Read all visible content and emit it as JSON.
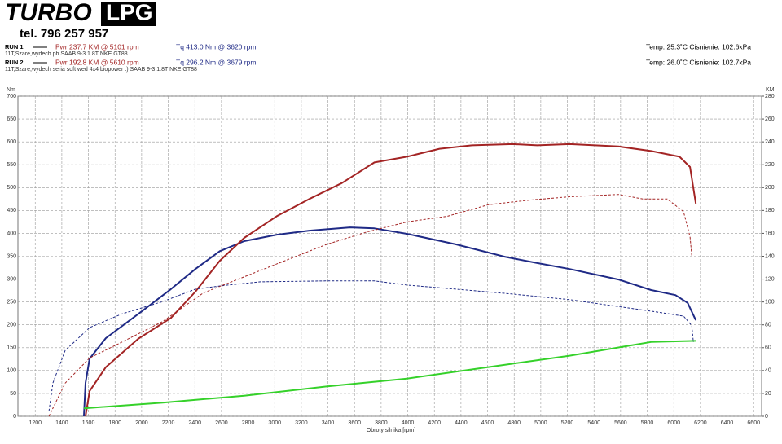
{
  "header": {
    "logo_left": "TURBO",
    "logo_right": "LPG",
    "phone": "tel. 796 257 957",
    "runs": [
      {
        "label": "RUN 1",
        "power": "Pwr 237.7 KM @ 5101 rpm",
        "torque": "Tq 413.0 Nm @ 3620 rpm",
        "conditions": "Temp: 25.3˚C   Cisnienie: 102.6kPa",
        "description": "11T,Szare,wydech pb SAAB 9-3 1.8T NKE GT88"
      },
      {
        "label": "RUN 2",
        "power": "Pwr 192.8 KM @ 5610 rpm",
        "torque": "Tq 296.2 Nm @ 3679 rpm",
        "conditions": "Temp: 26.0˚C   Cisnienie: 102.7kPa",
        "description": "11T,Szare,wydech seria soft wed 4x4 biopower :) SAAB 9-3 1.8T NKE GT88"
      }
    ]
  },
  "chart_data": {
    "type": "line",
    "ylabel": "Nm",
    "y2label": "KM",
    "xlabel": "Obroty silnika [rpm]",
    "grid": true,
    "xlim": [
      1070,
      6660
    ],
    "xticks": [
      1200,
      1400,
      1600,
      1800,
      2000,
      2200,
      2400,
      2600,
      2800,
      3000,
      3200,
      3400,
      3600,
      3800,
      4000,
      4200,
      4400,
      4600,
      4800,
      5000,
      5200,
      5400,
      5600,
      5800,
      6000,
      6200,
      6400,
      6600
    ],
    "ylim": [
      0,
      700
    ],
    "yticks": [
      0,
      50,
      100,
      150,
      200,
      250,
      300,
      350,
      400,
      450,
      500,
      550,
      600,
      650,
      700
    ],
    "y2lim": [
      0,
      280
    ],
    "y2ticks": [
      0,
      20,
      40,
      60,
      80,
      100,
      120,
      140,
      160,
      180,
      200,
      220,
      240,
      260,
      280
    ],
    "series": [
      {
        "color": "#1f2a86",
        "dashed": false,
        "x": [
          1566,
          1578,
          1609,
          1731,
          1976,
          2220,
          2404,
          2587,
          2771,
          3015,
          3260,
          3566,
          3749,
          3994,
          4361,
          4728,
          4973,
          5217,
          5584,
          5829,
          6012,
          6104,
          6165
        ],
        "values": [
          0,
          73,
          126,
          171,
          224,
          278,
          322,
          361,
          383,
          397,
          406,
          413,
          411,
          399,
          376,
          349,
          335,
          322,
          299,
          276,
          265,
          248,
          210
        ]
      },
      {
        "color": "#a32424",
        "dashed": false,
        "axis": "y2",
        "x": [
          1578,
          1609,
          1731,
          1976,
          2220,
          2404,
          2587,
          2771,
          3015,
          3260,
          3505,
          3749,
          3994,
          4239,
          4483,
          4789,
          4973,
          5217,
          5584,
          5829,
          6043,
          6122,
          6165
        ],
        "values": [
          0,
          22,
          43,
          68,
          86,
          109,
          136,
          156,
          175,
          190,
          204,
          222,
          227,
          234,
          237,
          238,
          237,
          238,
          236,
          232,
          227,
          218,
          186
        ]
      },
      {
        "color": "#1f2a86",
        "dashed": true,
        "x": [
          1303,
          1333,
          1425,
          1609,
          1853,
          2159,
          2404,
          2648,
          2893,
          3382,
          3749,
          3994,
          4361,
          4728,
          5217,
          5584,
          5829,
          6073,
          6135,
          6147
        ],
        "values": [
          11,
          73,
          144,
          194,
          224,
          251,
          278,
          287,
          294,
          296,
          296,
          287,
          278,
          269,
          255,
          240,
          230,
          219,
          198,
          162
        ]
      },
      {
        "color": "#a32424",
        "dashed": true,
        "axis": "y2",
        "x": [
          1303,
          1425,
          1609,
          1853,
          2159,
          2465,
          2771,
          3076,
          3382,
          3688,
          3994,
          4300,
          4606,
          4911,
          5217,
          5584,
          5768,
          5951,
          6073,
          6122,
          6135
        ],
        "values": [
          0,
          29,
          51,
          65,
          83,
          108,
          122,
          136,
          150,
          161,
          170,
          175,
          185,
          189,
          192,
          194,
          190,
          190,
          179,
          157,
          140
        ]
      },
      {
        "color": "#35d12a",
        "dashed": false,
        "axis": "y2",
        "x": [
          1566,
          2159,
          2771,
          3382,
          3994,
          4606,
          5217,
          5829,
          6165
        ],
        "values": [
          7,
          12,
          18,
          26,
          33,
          43,
          53,
          65,
          66
        ]
      }
    ]
  }
}
